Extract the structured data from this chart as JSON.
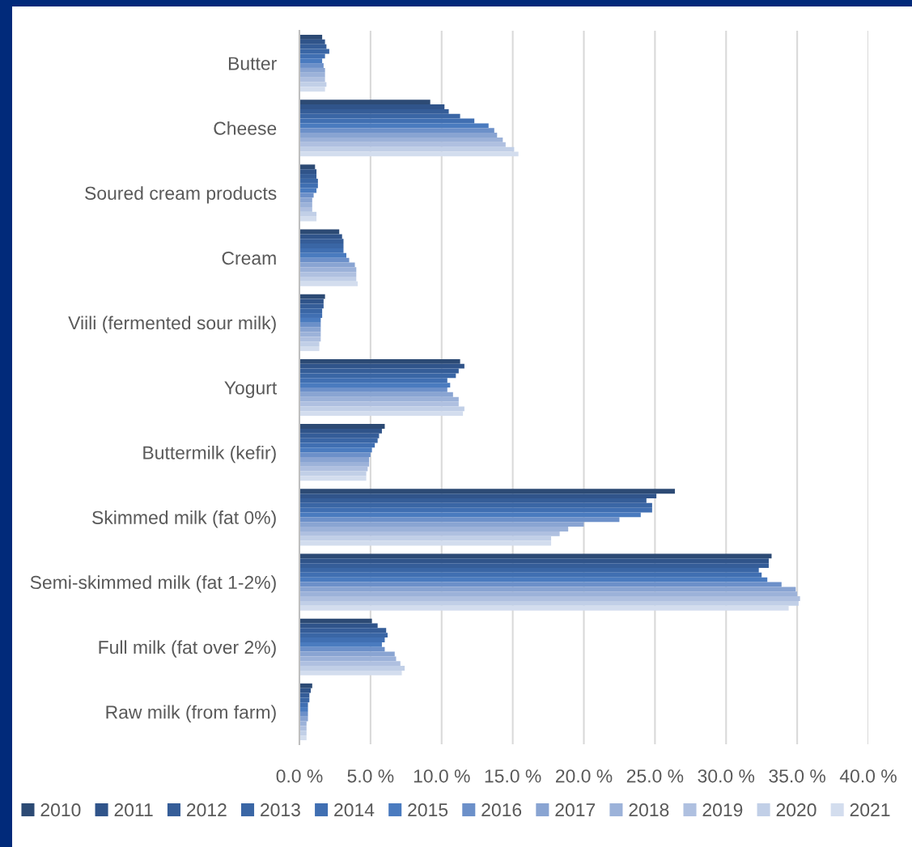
{
  "chart_data": {
    "type": "bar",
    "orientation": "horizontal",
    "categories": [
      "Butter",
      "Cheese",
      "Soured cream products",
      "Cream",
      "Viili (fermented sour milk)",
      "Yogurt",
      "Buttermilk (kefir)",
      "Skimmed milk (fat 0%)",
      "Semi-skimmed milk (fat 1-2%)",
      "Full milk (fat over 2%)",
      "Raw milk (from farm)"
    ],
    "series": [
      {
        "name": "2010",
        "color": "#2c4a74",
        "values": [
          1.6,
          9.2,
          1.1,
          2.8,
          1.8,
          11.3,
          6.0,
          26.4,
          33.2,
          5.1,
          0.9
        ]
      },
      {
        "name": "2011",
        "color": "#30548a",
        "values": [
          1.8,
          10.2,
          1.2,
          3.0,
          1.7,
          11.6,
          5.8,
          25.1,
          33.0,
          5.5,
          0.8
        ]
      },
      {
        "name": "2012",
        "color": "#355d98",
        "values": [
          1.9,
          10.5,
          1.2,
          3.1,
          1.7,
          11.2,
          5.6,
          24.4,
          33.0,
          6.1,
          0.7
        ]
      },
      {
        "name": "2013",
        "color": "#3a66a5",
        "values": [
          2.1,
          11.3,
          1.3,
          3.1,
          1.6,
          11.0,
          5.5,
          24.8,
          32.3,
          6.2,
          0.7
        ]
      },
      {
        "name": "2014",
        "color": "#406fb2",
        "values": [
          1.8,
          12.3,
          1.3,
          3.1,
          1.6,
          10.4,
          5.3,
          24.8,
          32.5,
          6.0,
          0.6
        ]
      },
      {
        "name": "2015",
        "color": "#4a7bbf",
        "values": [
          1.6,
          13.3,
          1.2,
          3.3,
          1.5,
          10.6,
          5.1,
          24.0,
          32.9,
          5.8,
          0.6
        ]
      },
      {
        "name": "2016",
        "color": "#6c90c9",
        "values": [
          1.7,
          13.7,
          1.0,
          3.5,
          1.5,
          10.4,
          5.0,
          22.5,
          33.9,
          6.0,
          0.6
        ]
      },
      {
        "name": "2017",
        "color": "#89a4d2",
        "values": [
          1.8,
          13.9,
          0.9,
          3.9,
          1.5,
          10.8,
          4.9,
          20.0,
          34.9,
          6.7,
          0.6
        ]
      },
      {
        "name": "2018",
        "color": "#9cb2d9",
        "values": [
          1.8,
          14.3,
          0.9,
          4.0,
          1.5,
          11.2,
          4.9,
          18.9,
          35.0,
          6.8,
          0.5
        ]
      },
      {
        "name": "2019",
        "color": "#afc0e0",
        "values": [
          1.8,
          14.5,
          0.9,
          4.0,
          1.5,
          11.2,
          4.8,
          18.3,
          35.2,
          7.1,
          0.5
        ]
      },
      {
        "name": "2020",
        "color": "#c1cfe7",
        "values": [
          1.9,
          15.1,
          1.2,
          4.0,
          1.4,
          11.6,
          4.7,
          17.7,
          35.1,
          7.4,
          0.5
        ]
      },
      {
        "name": "2021",
        "color": "#d3ddee",
        "values": [
          1.8,
          15.4,
          1.2,
          4.1,
          1.4,
          11.5,
          4.7,
          17.7,
          34.4,
          7.2,
          0.5
        ]
      }
    ],
    "xlim": [
      0,
      40
    ],
    "xticks": [
      {
        "value": 0,
        "label": "0.0 %"
      },
      {
        "value": 5,
        "label": "5.0 %"
      },
      {
        "value": 10,
        "label": "10.0 %"
      },
      {
        "value": 15,
        "label": "15.0 %"
      },
      {
        "value": 20,
        "label": "20.0 %"
      },
      {
        "value": 25,
        "label": "25.0 %"
      },
      {
        "value": 30,
        "label": "30.0 %"
      },
      {
        "value": 35,
        "label": "35.0 %"
      },
      {
        "value": 40,
        "label": "40.0 %"
      }
    ],
    "grid": "x",
    "legend": "bottom"
  }
}
